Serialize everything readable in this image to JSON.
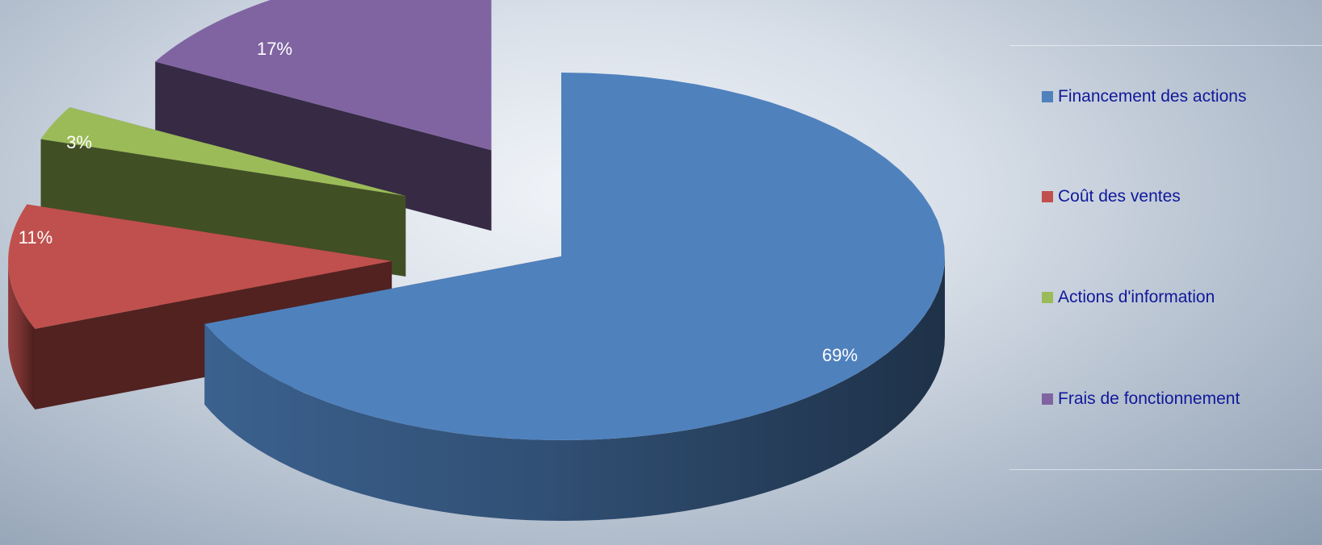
{
  "chart_data": {
    "type": "pie",
    "title": "",
    "categories": [
      "Financement des actions",
      "Coût des ventes",
      "Actions d'information",
      "Frais de fonctionnement"
    ],
    "values": [
      69,
      11,
      3,
      17
    ],
    "data_labels": [
      "69%",
      "11%",
      "3%",
      "17%"
    ],
    "colors": [
      "#4f81bd",
      "#c0504d",
      "#9bbb59",
      "#8064a2"
    ],
    "legend_placement": "right",
    "exploded": true,
    "three_d": true
  }
}
